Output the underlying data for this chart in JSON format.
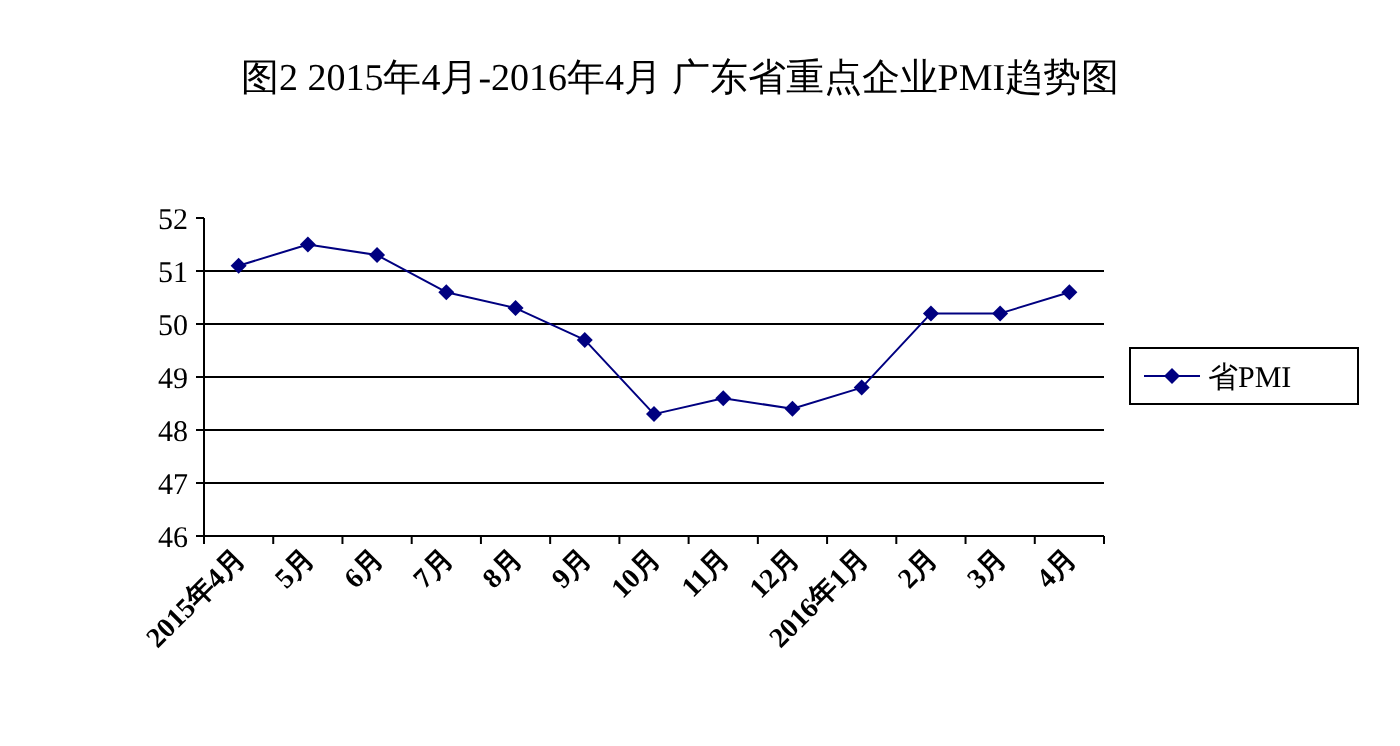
{
  "chart_data": {
    "type": "line",
    "title": "图2  2015年4月-2016年4月  广东省重点企业PMI趋势图",
    "categories": [
      "2015年4月",
      "5月",
      "6月",
      "7月",
      "8月",
      "9月",
      "10月",
      "11月",
      "12月",
      "2016年1月",
      "2月",
      "3月",
      "4月"
    ],
    "series": [
      {
        "name": "省PMI",
        "color": "#000080",
        "values": [
          51.1,
          51.5,
          51.3,
          50.6,
          50.3,
          49.7,
          48.3,
          48.6,
          48.4,
          48.8,
          50.2,
          50.2,
          50.6
        ]
      }
    ],
    "ylim": [
      46,
      52
    ],
    "yticks": [
      46,
      47,
      48,
      49,
      50,
      51,
      52
    ],
    "grid": "y",
    "legend": "right",
    "marker": "diamond",
    "line_style": "solid"
  }
}
